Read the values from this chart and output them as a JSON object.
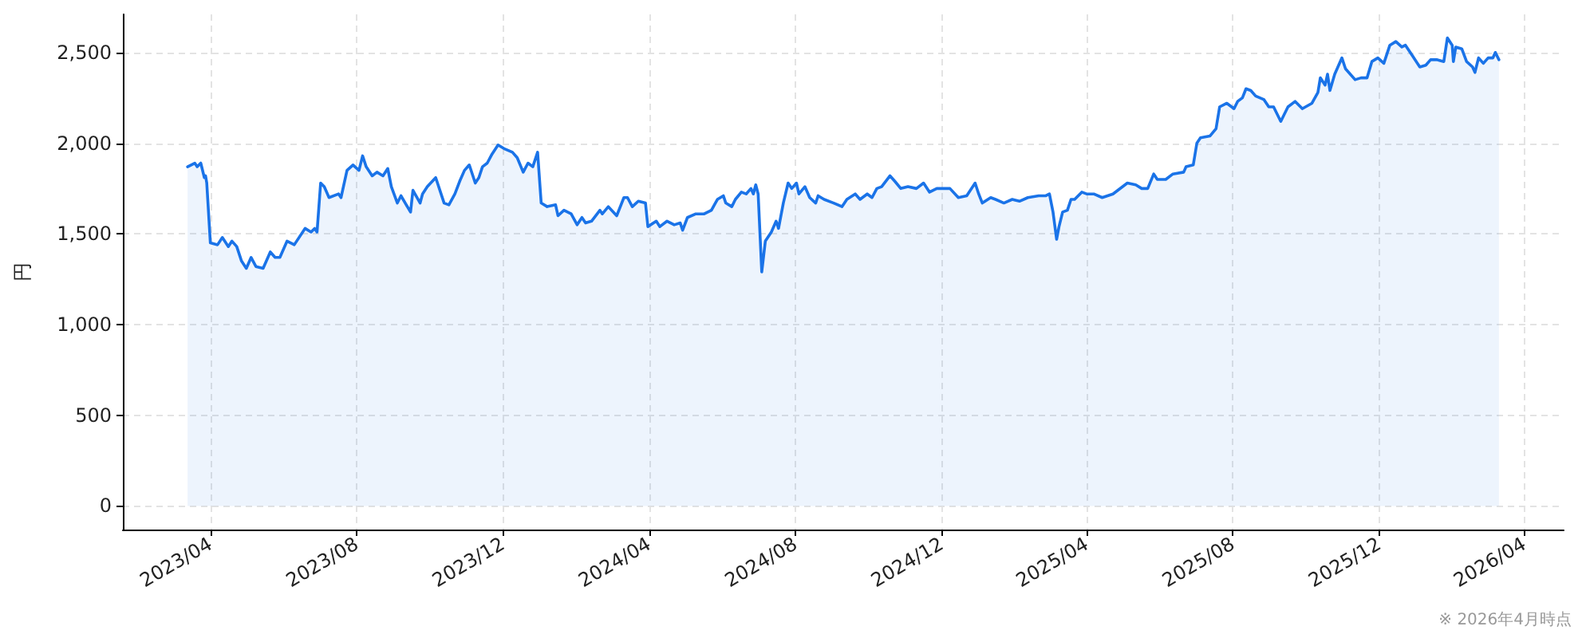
{
  "chart_data": {
    "type": "area",
    "ylabel": "円",
    "annotations": [
      "※ 2026年4月時点"
    ],
    "x": [
      "2023-03-13",
      "2023-03-19",
      "2023-03-21",
      "2023-03-24",
      "2023-03-27",
      "2023-03-28",
      "2023-03-29",
      "2023-04-01",
      "2023-04-07",
      "2023-04-11",
      "2023-04-16",
      "2023-04-19",
      "2023-04-23",
      "2023-04-27",
      "2023-05-01",
      "2023-05-05",
      "2023-05-09",
      "2023-05-15",
      "2023-05-21",
      "2023-05-25",
      "2023-05-29",
      "2023-06-04",
      "2023-06-10",
      "2023-06-19",
      "2023-06-24",
      "2023-06-27",
      "2023-06-29",
      "2023-07-02",
      "2023-07-05",
      "2023-07-09",
      "2023-07-17",
      "2023-07-19",
      "2023-07-24",
      "2023-07-29",
      "2023-08-03",
      "2023-08-06",
      "2023-08-09",
      "2023-08-14",
      "2023-08-18",
      "2023-08-23",
      "2023-08-27",
      "2023-08-30",
      "2023-09-04",
      "2023-09-07",
      "2023-09-15",
      "2023-09-17",
      "2023-09-23",
      "2023-09-25",
      "2023-09-29",
      "2023-10-06",
      "2023-10-13",
      "2023-10-17",
      "2023-10-22",
      "2023-10-26",
      "2023-10-30",
      "2023-11-03",
      "2023-11-08",
      "2023-11-11",
      "2023-11-14",
      "2023-11-18",
      "2023-11-22",
      "2023-11-27",
      "2023-12-02",
      "2023-12-09",
      "2023-12-13",
      "2023-12-18",
      "2023-12-22",
      "2023-12-26",
      "2023-12-30",
      "2024-01-02",
      "2024-01-07",
      "2024-01-14",
      "2024-01-16",
      "2024-01-21",
      "2024-01-27",
      "2024-02-01",
      "2024-02-05",
      "2024-02-08",
      "2024-02-13",
      "2024-02-20",
      "2024-02-22",
      "2024-02-27",
      "2024-03-05",
      "2024-03-11",
      "2024-03-14",
      "2024-03-18",
      "2024-03-23",
      "2024-03-29",
      "2024-03-31",
      "2024-04-07",
      "2024-04-10",
      "2024-04-16",
      "2024-04-22",
      "2024-04-27",
      "2024-04-29",
      "2024-05-03",
      "2024-05-10",
      "2024-05-17",
      "2024-05-23",
      "2024-05-28",
      "2024-06-02",
      "2024-06-04",
      "2024-06-09",
      "2024-06-12",
      "2024-06-17",
      "2024-06-21",
      "2024-06-25",
      "2024-06-27",
      "2024-06-29",
      "2024-07-01",
      "2024-07-04",
      "2024-07-07",
      "2024-07-12",
      "2024-07-16",
      "2024-07-18",
      "2024-07-22",
      "2024-07-26",
      "2024-07-29",
      "2024-08-02",
      "2024-08-04",
      "2024-08-09",
      "2024-08-13",
      "2024-08-18",
      "2024-08-20",
      "2024-08-25",
      "2024-09-02",
      "2024-09-09",
      "2024-09-13",
      "2024-09-20",
      "2024-09-24",
      "2024-09-30",
      "2024-10-04",
      "2024-10-08",
      "2024-10-12",
      "2024-10-19",
      "2024-10-23",
      "2024-10-28",
      "2024-11-03",
      "2024-11-10",
      "2024-11-16",
      "2024-11-21",
      "2024-11-27",
      "2024-12-08",
      "2024-12-15",
      "2024-12-22",
      "2024-12-29",
      "2025-01-01",
      "2025-01-04",
      "2025-01-11",
      "2025-01-15",
      "2025-01-22",
      "2025-01-29",
      "2025-02-04",
      "2025-02-11",
      "2025-02-20",
      "2025-02-26",
      "2025-03-01",
      "2025-03-04",
      "2025-03-07",
      "2025-03-09",
      "2025-03-12",
      "2025-03-16",
      "2025-03-19",
      "2025-03-22",
      "2025-03-28",
      "2025-04-01",
      "2025-04-07",
      "2025-04-14",
      "2025-04-23",
      "2025-05-05",
      "2025-05-12",
      "2025-05-17",
      "2025-05-22",
      "2025-05-27",
      "2025-05-30",
      "2025-06-06",
      "2025-06-12",
      "2025-06-21",
      "2025-06-23",
      "2025-06-29",
      "2025-07-02",
      "2025-07-05",
      "2025-07-13",
      "2025-07-18",
      "2025-07-21",
      "2025-07-27",
      "2025-08-02",
      "2025-08-05",
      "2025-08-09",
      "2025-08-12",
      "2025-08-16",
      "2025-08-20",
      "2025-08-27",
      "2025-08-31",
      "2025-09-04",
      "2025-09-10",
      "2025-09-16",
      "2025-09-22",
      "2025-09-28",
      "2025-10-06",
      "2025-10-11",
      "2025-10-13",
      "2025-10-17",
      "2025-10-19",
      "2025-10-21",
      "2025-10-25",
      "2025-10-31",
      "2025-11-03",
      "2025-11-11",
      "2025-11-16",
      "2025-11-21",
      "2025-11-25",
      "2025-11-30",
      "2025-12-05",
      "2025-12-10",
      "2025-12-15",
      "2025-12-20",
      "2025-12-23",
      "2025-12-29",
      "2026-01-04",
      "2026-01-09",
      "2026-01-13",
      "2026-01-18",
      "2026-01-24",
      "2026-01-27",
      "2026-01-31",
      "2026-02-01",
      "2026-02-03",
      "2026-02-08",
      "2026-02-12",
      "2026-02-17",
      "2026-02-19",
      "2026-02-22",
      "2026-02-26",
      "2026-03-02",
      "2026-03-06",
      "2026-03-08",
      "2026-03-11"
    ],
    "values": [
      1870,
      1890,
      1870,
      1890,
      1810,
      1820,
      1780,
      1450,
      1440,
      1480,
      1430,
      1460,
      1430,
      1350,
      1310,
      1370,
      1320,
      1310,
      1400,
      1370,
      1370,
      1460,
      1440,
      1530,
      1510,
      1530,
      1510,
      1780,
      1760,
      1700,
      1720,
      1700,
      1850,
      1880,
      1850,
      1930,
      1870,
      1820,
      1840,
      1820,
      1860,
      1760,
      1670,
      1710,
      1620,
      1740,
      1670,
      1720,
      1760,
      1810,
      1670,
      1660,
      1720,
      1790,
      1850,
      1880,
      1780,
      1810,
      1870,
      1890,
      1940,
      1990,
      1970,
      1950,
      1920,
      1840,
      1890,
      1870,
      1950,
      1670,
      1650,
      1660,
      1600,
      1630,
      1610,
      1550,
      1590,
      1560,
      1570,
      1630,
      1610,
      1650,
      1600,
      1700,
      1700,
      1650,
      1680,
      1670,
      1540,
      1570,
      1540,
      1570,
      1550,
      1560,
      1520,
      1590,
      1610,
      1610,
      1630,
      1690,
      1710,
      1670,
      1650,
      1690,
      1730,
      1720,
      1750,
      1720,
      1770,
      1720,
      1290,
      1460,
      1510,
      1570,
      1530,
      1670,
      1780,
      1750,
      1780,
      1720,
      1760,
      1700,
      1670,
      1710,
      1690,
      1670,
      1650,
      1690,
      1720,
      1690,
      1720,
      1700,
      1750,
      1760,
      1820,
      1790,
      1750,
      1760,
      1750,
      1780,
      1730,
      1750,
      1750,
      1700,
      1710,
      1780,
      1720,
      1670,
      1700,
      1690,
      1670,
      1690,
      1680,
      1700,
      1710,
      1710,
      1720,
      1620,
      1470,
      1540,
      1620,
      1630,
      1690,
      1690,
      1730,
      1720,
      1720,
      1700,
      1720,
      1780,
      1770,
      1750,
      1750,
      1830,
      1800,
      1800,
      1830,
      1840,
      1870,
      1880,
      2000,
      2030,
      2040,
      2080,
      2200,
      2220,
      2190,
      2230,
      2250,
      2300,
      2290,
      2260,
      2240,
      2200,
      2200,
      2120,
      2200,
      2230,
      2190,
      2220,
      2280,
      2360,
      2320,
      2380,
      2290,
      2380,
      2470,
      2410,
      2350,
      2360,
      2360,
      2450,
      2470,
      2440,
      2540,
      2560,
      2530,
      2540,
      2480,
      2420,
      2430,
      2460,
      2460,
      2450,
      2580,
      2540,
      2450,
      2530,
      2520,
      2450,
      2420,
      2390,
      2470,
      2440,
      2470,
      2470,
      2500,
      2460
    ],
    "color": "#1a73e8",
    "xlim": [
      "2023-01-18",
      "2026-05-04"
    ],
    "ylim": [
      -130,
      2710
    ],
    "xticks": [
      {
        "value": "2023-04",
        "label": "2023/04"
      },
      {
        "value": "2023-08",
        "label": "2023/08"
      },
      {
        "value": "2023-12",
        "label": "2023/12"
      },
      {
        "value": "2024-04",
        "label": "2024/04"
      },
      {
        "value": "2024-08",
        "label": "2024/08"
      },
      {
        "value": "2024-12",
        "label": "2024/12"
      },
      {
        "value": "2025-04",
        "label": "2025/04"
      },
      {
        "value": "2025-08",
        "label": "2025/08"
      },
      {
        "value": "2025-12",
        "label": "2025/12"
      },
      {
        "value": "2026-04",
        "label": "2026/04"
      }
    ],
    "yticks": [
      0,
      500,
      {
        "value": 1000,
        "label": "1,000"
      },
      {
        "value": 1500,
        "label": "1,500"
      },
      {
        "value": 2000,
        "label": "2,000"
      },
      {
        "value": 2500,
        "label": "2,500"
      }
    ],
    "grid": true
  }
}
